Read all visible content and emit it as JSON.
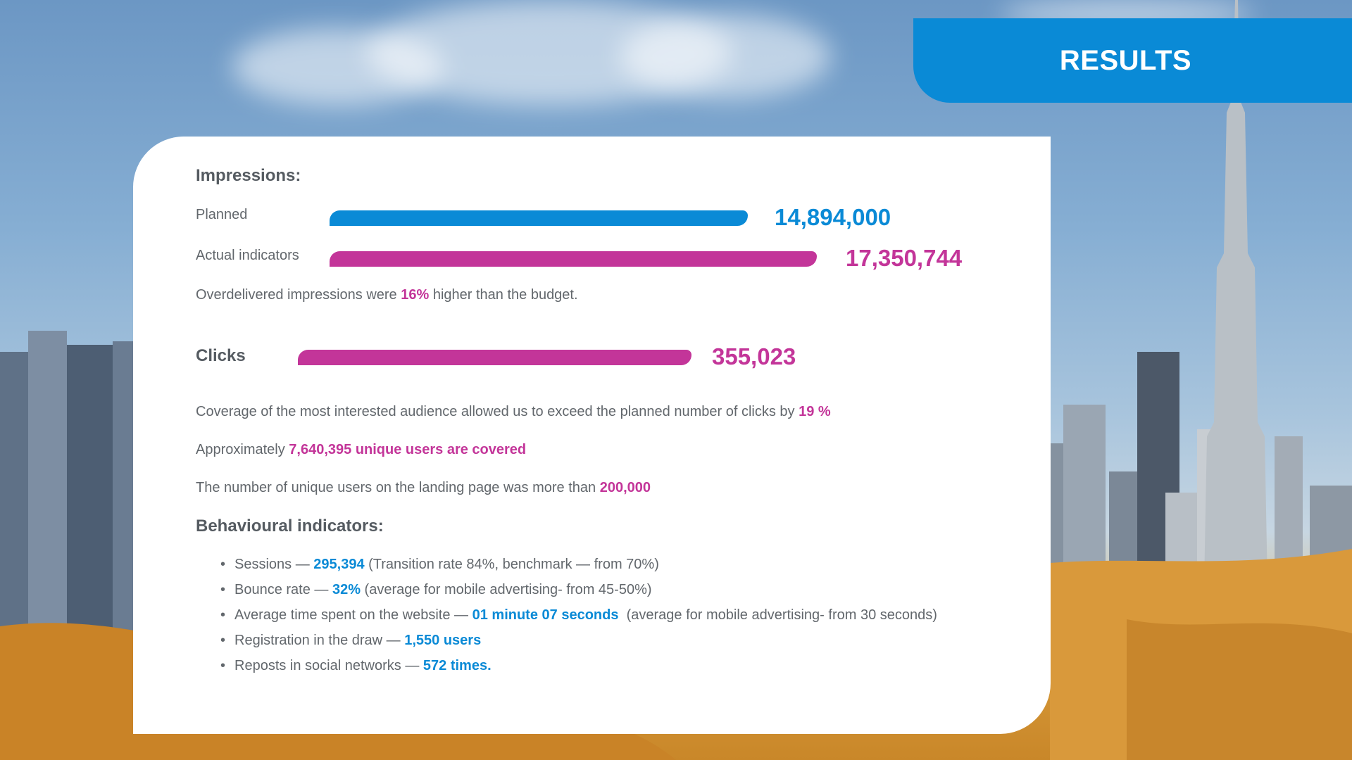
{
  "header": {
    "title": "RESULTS"
  },
  "impressions": {
    "heading": "Impressions:",
    "planned": {
      "label": "Planned",
      "value": "14,894,000"
    },
    "actual": {
      "label": "Actual indicators",
      "value": "17,350,744"
    },
    "note": {
      "prefix": "Overdelivered impressions were ",
      "highlight": "16%",
      "suffix": " higher than the budget."
    }
  },
  "clicks": {
    "label": "Clicks",
    "value": "355,023"
  },
  "statements": [
    {
      "prefix": "Coverage of the most interested audience allowed us to exceed the planned number of clicks by ",
      "highlight": "19 %"
    },
    {
      "prefix": "Approximately ",
      "highlight": "7,640,395 unique users are covered"
    },
    {
      "prefix": "The number of unique users on the landing page was more than ",
      "highlight": "200,000"
    }
  ],
  "behavioural": {
    "heading": "Behavioural indicators:",
    "items": [
      {
        "prefix": "Sessions — ",
        "highlight": "295,394",
        "suffix": " (Transition rate 84%, benchmark — from 70%)"
      },
      {
        "prefix": "Bounce rate — ",
        "highlight": "32%",
        "suffix": " (average for mobile advertising- from 45-50%)"
      },
      {
        "prefix": "Average time spent on the website — ",
        "highlight": "01 minute 07 seconds",
        "suffix": "  (average for mobile advertising- from 30 seconds)"
      },
      {
        "prefix": "Registration in the draw — ",
        "highlight": "1,550 users",
        "suffix": ""
      },
      {
        "prefix": "Reposts in social networks — ",
        "highlight": "572 times.",
        "suffix": ""
      }
    ]
  },
  "colors": {
    "accent_blue": "#0a8ad6",
    "accent_magenta": "#c33599",
    "text_gray": "#62676c"
  }
}
